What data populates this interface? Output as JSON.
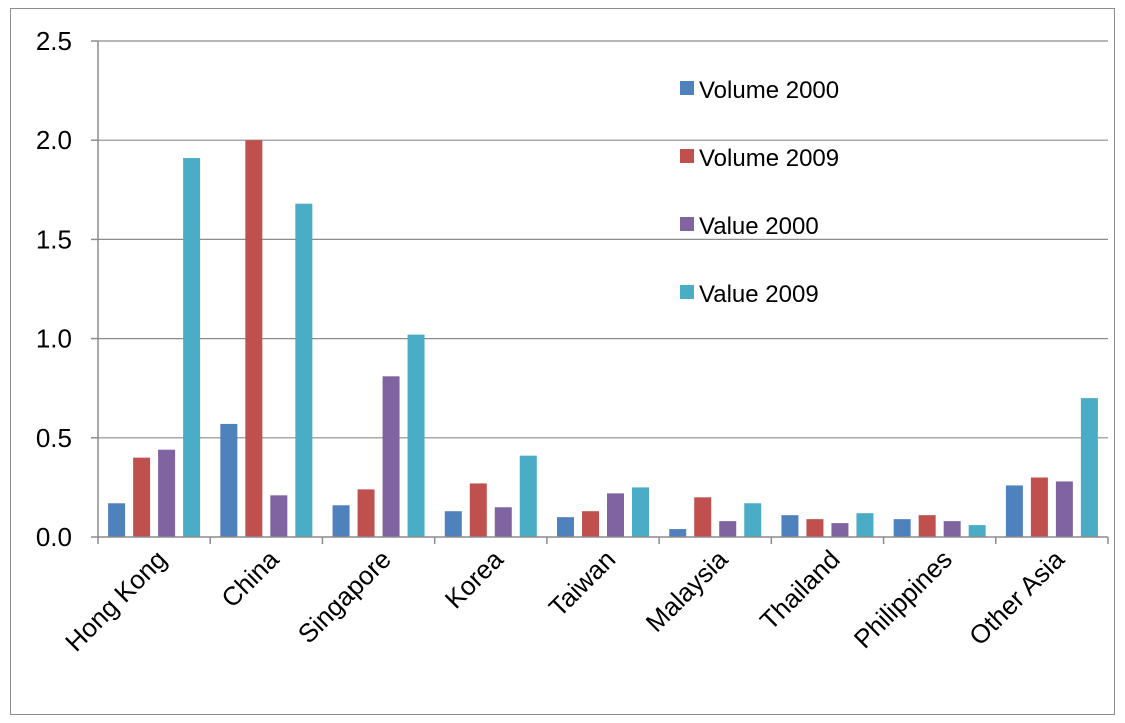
{
  "chart_data": {
    "type": "bar",
    "categories": [
      "Hong Kong",
      "China",
      "Singapore",
      "Korea",
      "Taiwan",
      "Malaysia",
      "Thailand",
      "Philippines",
      "Other Asia"
    ],
    "series": [
      {
        "name": "Volume 2000",
        "color": "#4F81BD",
        "values": [
          0.17,
          0.57,
          0.16,
          0.13,
          0.1,
          0.04,
          0.11,
          0.09,
          0.26
        ]
      },
      {
        "name": "Volume 2009",
        "color": "#C0504D",
        "values": [
          0.4,
          2.0,
          0.24,
          0.27,
          0.13,
          0.2,
          0.09,
          0.11,
          0.3
        ]
      },
      {
        "name": "Value 2000",
        "color": "#8064A2",
        "values": [
          0.44,
          0.21,
          0.81,
          0.15,
          0.22,
          0.08,
          0.07,
          0.08,
          0.28
        ]
      },
      {
        "name": "Value 2009",
        "color": "#4BACC6",
        "values": [
          1.91,
          1.68,
          1.02,
          0.41,
          0.25,
          0.17,
          0.12,
          0.06,
          0.7
        ]
      }
    ],
    "ylim": [
      0,
      2.5
    ],
    "yticks": [
      "0.0",
      "0.5",
      "1.0",
      "1.5",
      "2.0",
      "2.5"
    ],
    "ytick_values": [
      0,
      0.5,
      1.0,
      1.5,
      2.0,
      2.5
    ],
    "grid": true,
    "legend": "top-right, inside plot",
    "title": "",
    "xlabel": "",
    "ylabel": ""
  }
}
